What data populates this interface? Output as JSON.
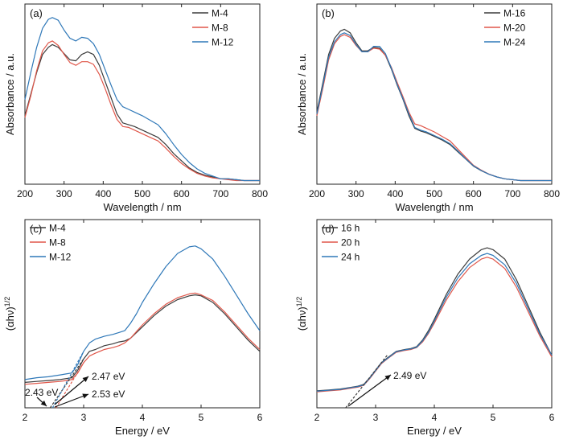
{
  "colors": {
    "black": "#3c3c3c",
    "red": "#e0574a",
    "blue": "#2f78b8",
    "frame": "#222222"
  },
  "chart_data": [
    {
      "panel": "(a)",
      "type": "line",
      "xlabel": "Wavelength / nm",
      "ylabel": "Absorbance / a.u.",
      "xlim": [
        200,
        800
      ],
      "ylim": [
        0,
        1
      ],
      "xticks": [
        "200",
        "300",
        "400",
        "500",
        "600",
        "700",
        "800"
      ],
      "y_tick_labels": false,
      "legend_position": "top-right",
      "x": [
        200,
        215,
        230,
        245,
        260,
        270,
        285,
        300,
        315,
        330,
        345,
        360,
        375,
        390,
        405,
        420,
        435,
        450,
        465,
        480,
        500,
        520,
        540,
        560,
        580,
        600,
        620,
        640,
        660,
        680,
        700,
        720,
        740,
        760,
        780,
        800
      ],
      "series": [
        {
          "name": "M-4",
          "color": "black",
          "values": [
            0.38,
            0.5,
            0.62,
            0.72,
            0.76,
            0.775,
            0.76,
            0.725,
            0.69,
            0.685,
            0.72,
            0.735,
            0.72,
            0.66,
            0.57,
            0.48,
            0.39,
            0.34,
            0.33,
            0.32,
            0.3,
            0.28,
            0.26,
            0.22,
            0.17,
            0.13,
            0.09,
            0.065,
            0.05,
            0.04,
            0.03,
            0.03,
            0.025,
            0.02,
            0.02,
            0.02
          ]
        },
        {
          "name": "M-8",
          "color": "red",
          "values": [
            0.37,
            0.49,
            0.63,
            0.74,
            0.785,
            0.795,
            0.77,
            0.72,
            0.675,
            0.66,
            0.68,
            0.68,
            0.665,
            0.61,
            0.53,
            0.44,
            0.36,
            0.32,
            0.315,
            0.3,
            0.28,
            0.26,
            0.24,
            0.2,
            0.155,
            0.115,
            0.085,
            0.06,
            0.045,
            0.035,
            0.03,
            0.025,
            0.02,
            0.02,
            0.02,
            0.02
          ]
        },
        {
          "name": "M-12",
          "color": "blue",
          "values": [
            0.47,
            0.62,
            0.76,
            0.865,
            0.915,
            0.925,
            0.91,
            0.855,
            0.81,
            0.795,
            0.815,
            0.81,
            0.78,
            0.72,
            0.635,
            0.55,
            0.47,
            0.43,
            0.415,
            0.4,
            0.38,
            0.355,
            0.33,
            0.28,
            0.22,
            0.165,
            0.12,
            0.085,
            0.06,
            0.045,
            0.03,
            0.03,
            0.025,
            0.02,
            0.02,
            0.02
          ]
        }
      ]
    },
    {
      "panel": "(b)",
      "type": "line",
      "xlabel": "Wavelength / nm",
      "ylabel": "Absorbance / a.u.",
      "xlim": [
        200,
        800
      ],
      "ylim": [
        0,
        1
      ],
      "xticks": [
        "200",
        "300",
        "400",
        "500",
        "600",
        "700",
        "800"
      ],
      "y_tick_labels": false,
      "legend_position": "top-right",
      "x": [
        200,
        215,
        230,
        245,
        260,
        270,
        285,
        300,
        315,
        330,
        345,
        360,
        375,
        390,
        405,
        420,
        435,
        450,
        465,
        480,
        500,
        520,
        540,
        560,
        580,
        600,
        620,
        640,
        660,
        680,
        700,
        720,
        740,
        760,
        780,
        800
      ],
      "series": [
        {
          "name": "M-16",
          "color": "black",
          "values": [
            0.4,
            0.56,
            0.72,
            0.81,
            0.85,
            0.86,
            0.84,
            0.785,
            0.74,
            0.74,
            0.76,
            0.755,
            0.715,
            0.64,
            0.55,
            0.47,
            0.38,
            0.31,
            0.295,
            0.285,
            0.265,
            0.245,
            0.22,
            0.18,
            0.14,
            0.1,
            0.075,
            0.055,
            0.04,
            0.03,
            0.025,
            0.02,
            0.02,
            0.02,
            0.02,
            0.02
          ]
        },
        {
          "name": "M-20",
          "color": "red",
          "values": [
            0.38,
            0.53,
            0.69,
            0.78,
            0.82,
            0.83,
            0.815,
            0.77,
            0.735,
            0.735,
            0.755,
            0.75,
            0.715,
            0.65,
            0.565,
            0.485,
            0.4,
            0.335,
            0.325,
            0.31,
            0.29,
            0.265,
            0.24,
            0.195,
            0.15,
            0.105,
            0.078,
            0.056,
            0.04,
            0.03,
            0.025,
            0.02,
            0.02,
            0.02,
            0.02,
            0.02
          ]
        },
        {
          "name": "M-24",
          "color": "blue",
          "values": [
            0.39,
            0.545,
            0.705,
            0.79,
            0.83,
            0.84,
            0.825,
            0.775,
            0.735,
            0.735,
            0.765,
            0.765,
            0.725,
            0.645,
            0.555,
            0.475,
            0.39,
            0.315,
            0.3,
            0.29,
            0.27,
            0.25,
            0.225,
            0.185,
            0.142,
            0.102,
            0.076,
            0.055,
            0.04,
            0.03,
            0.025,
            0.02,
            0.02,
            0.02,
            0.02,
            0.02
          ]
        }
      ]
    },
    {
      "panel": "(c)",
      "type": "line",
      "xlabel": "Energy / eV",
      "ylabel": "(αhν)1/2",
      "xlim": [
        2,
        6
      ],
      "ylim": [
        0,
        1
      ],
      "xticks": [
        "2",
        "3",
        "4",
        "5",
        "6"
      ],
      "y_tick_labels": false,
      "legend_position": "top-left",
      "x": [
        2.0,
        2.2,
        2.4,
        2.6,
        2.7,
        2.8,
        2.9,
        3.0,
        3.1,
        3.2,
        3.35,
        3.5,
        3.6,
        3.7,
        3.8,
        3.9,
        4.0,
        4.2,
        4.4,
        4.6,
        4.8,
        4.9,
        5.0,
        5.2,
        5.4,
        5.6,
        5.8,
        6.0
      ],
      "series": [
        {
          "name": "M-4",
          "color": "black",
          "values": [
            0.135,
            0.14,
            0.145,
            0.15,
            0.155,
            0.16,
            0.2,
            0.26,
            0.3,
            0.31,
            0.33,
            0.34,
            0.35,
            0.355,
            0.37,
            0.4,
            0.43,
            0.49,
            0.54,
            0.575,
            0.595,
            0.6,
            0.595,
            0.56,
            0.5,
            0.43,
            0.36,
            0.3
          ]
        },
        {
          "name": "M-8",
          "color": "red",
          "values": [
            0.125,
            0.13,
            0.135,
            0.14,
            0.145,
            0.15,
            0.185,
            0.24,
            0.275,
            0.29,
            0.31,
            0.32,
            0.33,
            0.345,
            0.37,
            0.405,
            0.44,
            0.5,
            0.55,
            0.585,
            0.605,
            0.61,
            0.6,
            0.57,
            0.51,
            0.44,
            0.37,
            0.31
          ]
        },
        {
          "name": "M-12",
          "color": "blue",
          "values": [
            0.15,
            0.16,
            0.165,
            0.175,
            0.18,
            0.185,
            0.23,
            0.3,
            0.345,
            0.365,
            0.38,
            0.39,
            0.4,
            0.41,
            0.45,
            0.5,
            0.56,
            0.66,
            0.75,
            0.82,
            0.855,
            0.86,
            0.845,
            0.79,
            0.7,
            0.6,
            0.5,
            0.41
          ]
        }
      ],
      "tangents": [
        {
          "color": "black",
          "from": [
            2.43,
            0.0
          ],
          "to": [
            3.0,
            0.26
          ]
        },
        {
          "color": "red",
          "from": [
            2.53,
            0.0
          ],
          "to": [
            3.0,
            0.24
          ]
        },
        {
          "color": "blue",
          "from": [
            2.47,
            0.0
          ],
          "to": [
            3.0,
            0.3
          ]
        }
      ],
      "annotations": [
        {
          "text": "2.43 eV",
          "x": 2.43
        },
        {
          "text": "2.47 eV",
          "x": 2.47
        },
        {
          "text": "2.53 eV",
          "x": 2.53
        }
      ]
    },
    {
      "panel": "(d)",
      "type": "line",
      "xlabel": "Energy / eV",
      "ylabel": "(αhν)1/2",
      "xlim": [
        2,
        6
      ],
      "ylim": [
        0,
        1
      ],
      "xticks": [
        "2",
        "3",
        "4",
        "5",
        "6"
      ],
      "y_tick_labels": false,
      "legend_position": "top-left",
      "x": [
        2.0,
        2.2,
        2.4,
        2.6,
        2.7,
        2.8,
        2.9,
        3.0,
        3.1,
        3.2,
        3.35,
        3.5,
        3.6,
        3.7,
        3.8,
        3.9,
        4.0,
        4.2,
        4.4,
        4.6,
        4.8,
        4.9,
        5.0,
        5.2,
        5.4,
        5.6,
        5.8,
        6.0
      ],
      "series": [
        {
          "name": "16 h",
          "color": "black",
          "values": [
            0.09,
            0.095,
            0.1,
            0.11,
            0.115,
            0.125,
            0.16,
            0.2,
            0.24,
            0.265,
            0.3,
            0.31,
            0.315,
            0.325,
            0.36,
            0.41,
            0.47,
            0.6,
            0.71,
            0.79,
            0.84,
            0.85,
            0.84,
            0.79,
            0.68,
            0.54,
            0.4,
            0.28
          ]
        },
        {
          "name": "20 h",
          "color": "red",
          "values": [
            0.085,
            0.09,
            0.095,
            0.105,
            0.11,
            0.12,
            0.155,
            0.195,
            0.235,
            0.26,
            0.295,
            0.305,
            0.31,
            0.32,
            0.35,
            0.395,
            0.45,
            0.57,
            0.67,
            0.745,
            0.79,
            0.8,
            0.79,
            0.74,
            0.64,
            0.51,
            0.38,
            0.27
          ]
        },
        {
          "name": "24 h",
          "color": "blue",
          "values": [
            0.088,
            0.093,
            0.098,
            0.108,
            0.113,
            0.122,
            0.158,
            0.198,
            0.238,
            0.262,
            0.298,
            0.308,
            0.313,
            0.322,
            0.355,
            0.4,
            0.46,
            0.585,
            0.69,
            0.765,
            0.81,
            0.82,
            0.81,
            0.76,
            0.66,
            0.525,
            0.39,
            0.28
          ]
        }
      ],
      "tangents": [
        {
          "color": "black",
          "from": [
            2.49,
            0.0
          ],
          "to": [
            3.2,
            0.28
          ]
        }
      ],
      "annotations": [
        {
          "text": "2.49 eV",
          "x": 2.49
        }
      ]
    }
  ]
}
